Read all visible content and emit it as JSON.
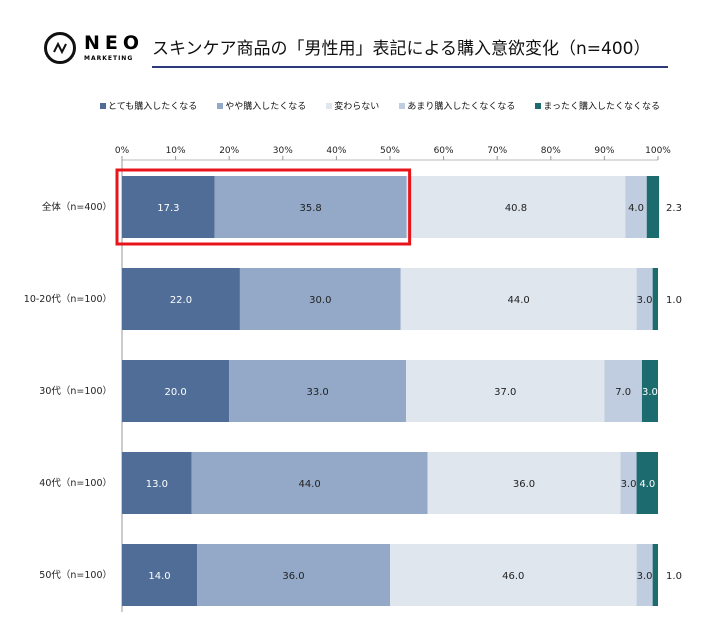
{
  "logo": {
    "text": "NEO",
    "sub": "MARKETING"
  },
  "title": "スキンケア商品の「男性用」表記による購入意欲変化（n=400）",
  "chart_data": {
    "type": "bar",
    "orientation": "horizontal",
    "stacked": true,
    "xlim": [
      0,
      100
    ],
    "ticks": [
      "0%",
      "10%",
      "20%",
      "30%",
      "40%",
      "50%",
      "60%",
      "70%",
      "80%",
      "90%",
      "100%"
    ],
    "legend_position": "top",
    "categories": [
      "全体（n=400）",
      "10-20代（n=100）",
      "30代（n=100）",
      "40代（n=100）",
      "50代（n=100）"
    ],
    "series": [
      {
        "name": "とても購入したくなる",
        "color": "#4f6d97",
        "values": [
          17.3,
          22.0,
          20.0,
          13.0,
          14.0
        ]
      },
      {
        "name": "やや購入したくなる",
        "color": "#93a9c7",
        "values": [
          35.8,
          30.0,
          33.0,
          44.0,
          36.0
        ]
      },
      {
        "name": "変わらない",
        "color": "#dfe6ee",
        "values": [
          40.8,
          44.0,
          37.0,
          36.0,
          46.0
        ]
      },
      {
        "name": "あまり購入したくなくなる",
        "color": "#c0cde0",
        "values": [
          4.0,
          3.0,
          7.0,
          3.0,
          3.0
        ]
      },
      {
        "name": "まったく購入したくなくなる",
        "color": "#1c6b6e",
        "values": [
          2.3,
          1.0,
          3.0,
          4.0,
          1.0
        ]
      }
    ],
    "highlight": {
      "category": "全体（n=400）",
      "series": [
        "とても購入したくなる",
        "やや購入したくなる"
      ],
      "color": "#e8141b"
    }
  }
}
